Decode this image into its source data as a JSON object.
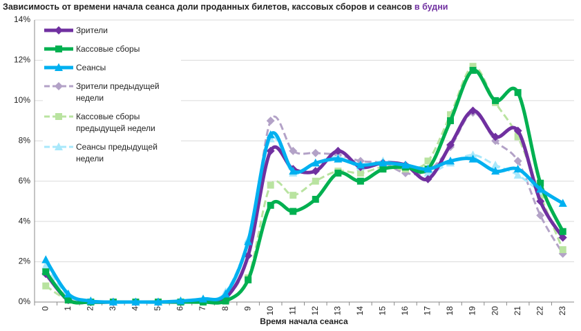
{
  "chart_data": {
    "type": "line",
    "title": "Зависимость от времени начала сеанса доли проданных билетов, кассовых сборов и сеансов",
    "title_highlight": "в будни",
    "x_label": "Время начала сеанса",
    "categories": [
      "0",
      "1",
      "2",
      "3",
      "4",
      "5",
      "6",
      "7",
      "8",
      "9",
      "10",
      "11",
      "12",
      "13",
      "14",
      "15",
      "16",
      "17",
      "18",
      "19",
      "20",
      "21",
      "22",
      "23"
    ],
    "ylim": [
      0,
      14
    ],
    "yticks": [
      {
        "value": 0,
        "label": "0%"
      },
      {
        "value": 2,
        "label": "2%"
      },
      {
        "value": 4,
        "label": "4%"
      },
      {
        "value": 6,
        "label": "6%"
      },
      {
        "value": 8,
        "label": "8%"
      },
      {
        "value": 10,
        "label": "10%"
      },
      {
        "value": 12,
        "label": "12%"
      },
      {
        "value": 14,
        "label": "14%"
      }
    ],
    "grid": true,
    "series": [
      {
        "name": "Зрители",
        "color": "#7030a0",
        "marker": "diamond",
        "dashed": false,
        "values": [
          1.4,
          0.1,
          0,
          0,
          0,
          0,
          0,
          0.05,
          0.2,
          2.3,
          7.5,
          6.6,
          6.5,
          7.5,
          6.7,
          6.9,
          6.8,
          6.1,
          7.8,
          9.5,
          8.2,
          8.5,
          5.0,
          3.2
        ]
      },
      {
        "name": "Кассовые сборы",
        "color": "#00b050",
        "marker": "square",
        "dashed": false,
        "values": [
          1.5,
          0.1,
          0,
          0,
          0,
          0,
          0,
          0,
          0.05,
          1.1,
          4.8,
          4.5,
          5.1,
          6.4,
          6.0,
          6.6,
          6.7,
          6.6,
          9.0,
          11.5,
          10.0,
          10.4,
          5.9,
          3.5
        ]
      },
      {
        "name": "Сеансы",
        "color": "#00b0f0",
        "marker": "triangle",
        "dashed": false,
        "values": [
          2.1,
          0.4,
          0.05,
          0,
          0,
          0,
          0.05,
          0.15,
          0.4,
          3.0,
          8.3,
          6.5,
          6.9,
          7.1,
          6.8,
          6.9,
          6.8,
          6.6,
          7.0,
          7.1,
          6.5,
          6.6,
          5.6,
          4.9
        ]
      },
      {
        "name": "Зрители предыдущей недели",
        "color": "#b3a2c7",
        "marker": "diamond",
        "dashed": true,
        "values": [
          1.4,
          0.2,
          0,
          0,
          0,
          0,
          0,
          0.1,
          0.2,
          2.3,
          9.0,
          7.5,
          7.4,
          7.3,
          7.0,
          6.9,
          6.4,
          6.5,
          7.7,
          9.4,
          8.0,
          7.0,
          4.3,
          2.4
        ]
      },
      {
        "name": "Кассовые сборы предыдущей недели",
        "color": "#b9e3a0",
        "marker": "square",
        "dashed": true,
        "values": [
          0.8,
          0.1,
          0,
          0,
          0,
          0,
          0,
          0,
          0.1,
          1.2,
          5.8,
          5.3,
          6.0,
          6.5,
          6.4,
          6.7,
          6.6,
          7.0,
          9.3,
          11.7,
          9.9,
          8.2,
          5.3,
          2.6
        ]
      },
      {
        "name": "Сеансы предыдущей недели",
        "color": "#a8e8fb",
        "marker": "triangle",
        "dashed": true,
        "values": [
          1.8,
          0.3,
          0.05,
          0,
          0,
          0,
          0.05,
          0.1,
          0.5,
          3.1,
          8.1,
          6.4,
          6.9,
          7.2,
          6.7,
          7.0,
          6.8,
          6.4,
          6.9,
          7.3,
          6.8,
          6.3,
          5.5,
          4.9
        ]
      }
    ]
  }
}
